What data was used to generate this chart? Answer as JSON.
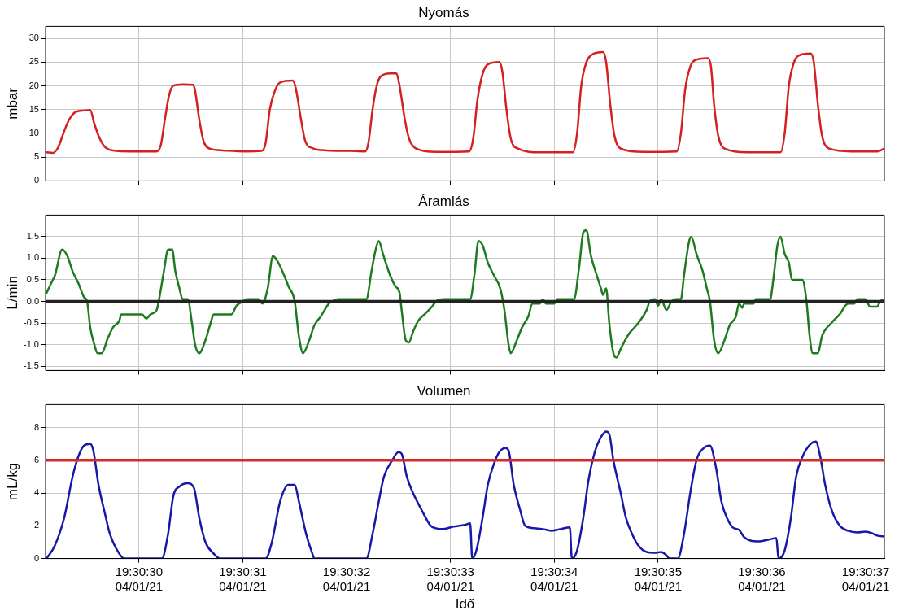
{
  "chart_data": [
    {
      "type": "line",
      "title": "Nyomás",
      "ylabel": "mbar",
      "xlim": [
        "--04-01T19:30:29.10",
        "--04-01T19:30:37.18"
      ],
      "ylim": [
        0,
        32.5
      ],
      "grid": true,
      "legend": false,
      "marker": "none",
      "line_style": "solid",
      "tick_labels": "y",
      "xticks": [
        "--04-01T19:30:30",
        "--04-01T19:30:31",
        "--04-01T19:30:32",
        "--04-01T19:30:33",
        "--04-01T19:30:34",
        "--04-01T19:30:35",
        "--04-01T19:30:36",
        "--04-01T19:30:37"
      ],
      "yticks": [
        0,
        5,
        10,
        15,
        20,
        25,
        30
      ],
      "series": [
        {
          "color": "#d42020",
          "x": [
            "--04-01T19:30:29.11",
            "--04-01T19:30:29.17",
            "--04-01T19:30:29.22",
            "--04-01T19:30:29.28",
            "--04-01T19:30:29.33",
            "--04-01T19:30:29.39",
            "--04-01T19:30:29.47",
            "--04-01T19:30:29.53",
            "--04-01T19:30:29.57",
            "--04-01T19:30:29.62",
            "--04-01T19:30:29.67",
            "--04-01T19:30:29.75",
            "--04-01T19:30:29.92",
            "--04-01T19:30:30.17",
            "--04-01T19:30:30.21",
            "--04-01T19:30:30.25",
            "--04-01T19:30:30.29",
            "--04-01T19:30:30.33",
            "--04-01T19:30:30.42",
            "--04-01T19:30:30.52",
            "--04-01T19:30:30.54",
            "--04-01T19:30:30.58",
            "--04-01T19:30:30.62",
            "--04-01T19:30:30.68",
            "--04-01T19:30:30.81",
            "--04-01T19:30:31.03",
            "--04-01T19:30:31.18",
            "--04-01T19:30:31.22",
            "--04-01T19:30:31.26",
            "--04-01T19:30:31.31",
            "--04-01T19:30:31.36",
            "--04-01T19:30:31.48",
            "--04-01T19:30:31.51",
            "--04-01T19:30:31.56",
            "--04-01T19:30:31.60",
            "--04-01T19:30:31.67",
            "--04-01T19:30:31.81",
            "--04-01T19:30:32.03",
            "--04-01T19:30:32.18",
            "--04-01T19:30:32.21",
            "--04-01T19:30:32.25",
            "--04-01T19:30:32.29",
            "--04-01T19:30:32.33",
            "--04-01T19:30:32.42",
            "--04-01T19:30:32.48",
            "--04-01T19:30:32.51",
            "--04-01T19:30:32.56",
            "--04-01T19:30:32.60",
            "--04-01T19:30:32.67",
            "--04-01T19:30:32.86",
            "--04-01T19:30:33.18",
            "--04-01T19:30:33.22",
            "--04-01T19:30:33.26",
            "--04-01T19:30:33.31",
            "--04-01T19:30:33.36",
            "--04-01T19:30:33.47",
            "--04-01T19:30:33.50",
            "--04-01T19:30:33.54",
            "--04-01T19:30:33.58",
            "--04-01T19:30:33.65",
            "--04-01T19:30:33.86",
            "--04-01T19:30:34.18",
            "--04-01T19:30:34.22",
            "--04-01T19:30:34.26",
            "--04-01T19:30:34.31",
            "--04-01T19:30:34.36",
            "--04-01T19:30:34.47",
            "--04-01T19:30:34.50",
            "--04-01T19:30:34.54",
            "--04-01T19:30:34.58",
            "--04-01T19:30:34.65",
            "--04-01T19:30:34.86",
            "--04-01T19:30:35.18",
            "--04-01T19:30:35.22",
            "--04-01T19:30:35.26",
            "--04-01T19:30:35.31",
            "--04-01T19:30:35.37",
            "--04-01T19:30:35.48",
            "--04-01T19:30:35.51",
            "--04-01T19:30:35.54",
            "--04-01T19:30:35.58",
            "--04-01T19:30:35.65",
            "--04-01T19:30:35.86",
            "--04-01T19:30:36.18",
            "--04-01T19:30:36.22",
            "--04-01T19:30:36.26",
            "--04-01T19:30:36.31",
            "--04-01T19:30:36.37",
            "--04-01T19:30:36.47",
            "--04-01T19:30:36.50",
            "--04-01T19:30:36.54",
            "--04-01T19:30:36.58",
            "--04-01T19:30:36.65",
            "--04-01T19:30:36.86",
            "--04-01T19:30:37.11",
            "--04-01T19:30:37.18"
          ],
          "values": [
            6.0,
            5.9,
            7.0,
            10.5,
            13.0,
            14.5,
            14.8,
            14.9,
            12.0,
            9.0,
            7.2,
            6.4,
            6.2,
            6.2,
            7.5,
            13.0,
            18.0,
            20.0,
            20.3,
            20.2,
            19.0,
            13.0,
            8.5,
            6.8,
            6.4,
            6.2,
            6.3,
            8.0,
            15.0,
            19.0,
            20.7,
            21.1,
            19.5,
            13.0,
            8.5,
            6.9,
            6.4,
            6.3,
            6.2,
            8.0,
            15.0,
            20.0,
            22.0,
            22.6,
            22.6,
            20.0,
            13.0,
            9.0,
            6.8,
            6.1,
            6.2,
            9.0,
            17.0,
            22.5,
            24.5,
            25.0,
            23.0,
            15.0,
            9.0,
            6.8,
            6.0,
            6.0,
            10.0,
            20.0,
            25.0,
            26.5,
            27.1,
            25.0,
            16.0,
            9.5,
            6.7,
            6.1,
            6.2,
            10.0,
            19.0,
            24.0,
            25.5,
            25.8,
            24.0,
            16.0,
            9.5,
            6.7,
            6.0,
            6.0,
            10.0,
            20.0,
            25.0,
            26.5,
            26.8,
            25.0,
            16.0,
            9.5,
            6.8,
            6.2,
            6.2,
            6.8
          ]
        }
      ]
    },
    {
      "type": "line",
      "title": "Áramlás",
      "ylabel": "L/min",
      "xlim": [
        "--04-01T19:30:29.10",
        "--04-01T19:30:37.18"
      ],
      "ylim": [
        -1.6,
        2.0
      ],
      "grid": true,
      "legend": false,
      "marker": "none",
      "line_style": "solid",
      "tick_labels": "y",
      "xticks": [
        "--04-01T19:30:30",
        "--04-01T19:30:31",
        "--04-01T19:30:32",
        "--04-01T19:30:33",
        "--04-01T19:30:34",
        "--04-01T19:30:35",
        "--04-01T19:30:36",
        "--04-01T19:30:37"
      ],
      "yticks": [
        {
          "value": -1.5,
          "label": "-1.5"
        },
        {
          "value": -1,
          "label": "-1.0"
        },
        {
          "value": -0.5,
          "label": "-0.5"
        },
        {
          "value": 0,
          "label": "0.0"
        },
        {
          "value": 0.5,
          "label": "0.5"
        },
        {
          "value": 1,
          "label": "1.0"
        },
        {
          "value": 1.5,
          "label": "1.5"
        }
      ],
      "ref_lines": [
        {
          "axis": "y",
          "value": 0,
          "color": "#222222"
        }
      ],
      "series": [
        {
          "color": "#1e7a1e",
          "x": [
            "--04-01T19:30:29.11",
            "--04-01T19:30:29.17",
            "--04-01T19:30:29.19",
            "--04-01T19:30:29.26",
            "--04-01T19:30:29.31",
            "--04-01T19:30:29.36",
            "--04-01T19:30:29.42",
            "--04-01T19:30:29.47",
            "--04-01T19:30:29.50",
            "--04-01T19:30:29.53",
            "--04-01T19:30:29.57",
            "--04-01T19:30:29.60",
            "--04-01T19:30:29.64",
            "--04-01T19:30:29.70",
            "--04-01T19:30:29.75",
            "--04-01T19:30:29.81",
            "--04-01T19:30:29.83",
            "--04-01T19:30:30.03",
            "--04-01T19:30:30.07",
            "--04-01T19:30:30.11",
            "--04-01T19:30:30.17",
            "--04-01T19:30:30.19",
            "--04-01T19:30:30.24",
            "--04-01T19:30:30.28",
            "--04-01T19:30:30.32",
            "--04-01T19:30:30.35",
            "--04-01T19:30:30.39",
            "--04-01T19:30:30.42",
            "--04-01T19:30:30.47",
            "--04-01T19:30:30.51",
            "--04-01T19:30:30.54",
            "--04-01T19:30:30.58",
            "--04-01T19:30:30.64",
            "--04-01T19:30:30.69",
            "--04-01T19:30:30.72",
            "--04-01T19:30:30.89",
            "--04-01T19:30:30.94",
            "--04-01T19:30:31.00",
            "--04-01T19:30:31.04",
            "--04-01T19:30:31.15",
            "--04-01T19:30:31.19",
            "--04-01T19:30:31.24",
            "--04-01T19:30:31.29",
            "--04-01T19:30:31.33",
            "--04-01T19:30:31.39",
            "--04-01T19:30:31.44",
            "--04-01T19:30:31.50",
            "--04-01T19:30:31.54",
            "--04-01T19:30:31.58",
            "--04-01T19:30:31.64",
            "--04-01T19:30:31.69",
            "--04-01T19:30:31.75",
            "--04-01T19:30:31.83",
            "--04-01T19:30:31.86",
            "--04-01T19:30:31.92",
            "--04-01T19:30:32.19",
            "--04-01T19:30:32.24",
            "--04-01T19:30:32.28",
            "--04-01T19:30:32.31",
            "--04-01T19:30:32.35",
            "--04-01T19:30:32.42",
            "--04-01T19:30:32.47",
            "--04-01T19:30:32.51",
            "--04-01T19:30:32.53",
            "--04-01T19:30:32.57",
            "--04-01T19:30:32.60",
            "--04-01T19:30:32.64",
            "--04-01T19:30:32.69",
            "--04-01T19:30:32.75",
            "--04-01T19:30:32.83",
            "--04-01T19:30:32.86",
            "--04-01T19:30:32.94",
            "--04-01T19:30:33.19",
            "--04-01T19:30:33.23",
            "--04-01T19:30:33.27",
            "--04-01T19:30:33.31",
            "--04-01T19:30:33.36",
            "--04-01T19:30:33.42",
            "--04-01T19:30:33.48",
            "--04-01T19:30:33.52",
            "--04-01T19:30:33.56",
            "--04-01T19:30:33.58",
            "--04-01T19:30:33.64",
            "--04-01T19:30:33.69",
            "--04-01T19:30:33.75",
            "--04-01T19:30:33.79",
            "--04-01T19:30:33.86",
            "--04-01T19:30:33.89",
            "--04-01T19:30:33.92",
            "--04-01T19:30:34.00",
            "--04-01T19:30:34.03",
            "--04-01T19:30:34.19",
            "--04-01T19:30:34.24",
            "--04-01T19:30:34.28",
            "--04-01T19:30:34.31",
            "--04-01T19:30:34.35",
            "--04-01T19:30:34.41",
            "--04-01T19:30:34.45",
            "--04-01T19:30:34.47",
            "--04-01T19:30:34.50",
            "--04-01T19:30:34.53",
            "--04-01T19:30:34.57",
            "--04-01T19:30:34.60",
            "--04-01T19:30:34.64",
            "--04-01T19:30:34.72",
            "--04-01T19:30:34.81",
            "--04-01T19:30:34.89",
            "--04-01T19:30:34.92",
            "--04-01T19:30:34.97",
            "--04-01T19:30:35.00",
            "--04-01T19:30:35.03",
            "--04-01T19:30:35.08",
            "--04-01T19:30:35.13",
            "--04-01T19:30:35.17",
            "--04-01T19:30:35.22",
            "--04-01T19:30:35.25",
            "--04-01T19:30:35.30",
            "--04-01T19:30:35.32",
            "--04-01T19:30:35.37",
            "--04-01T19:30:35.43",
            "--04-01T19:30:35.47",
            "--04-01T19:30:35.50",
            "--04-01T19:30:35.54",
            "--04-01T19:30:35.58",
            "--04-01T19:30:35.64",
            "--04-01T19:30:35.69",
            "--04-01T19:30:35.75",
            "--04-01T19:30:35.78",
            "--04-01T19:30:35.81",
            "--04-01T19:30:35.83",
            "--04-01T19:30:35.92",
            "--04-01T19:30:35.94",
            "--04-01T19:30:36.08",
            "--04-01T19:30:36.11",
            "--04-01T19:30:36.15",
            "--04-01T19:30:36.18",
            "--04-01T19:30:36.22",
            "--04-01T19:30:36.26",
            "--04-01T19:30:36.29",
            "--04-01T19:30:36.39",
            "--04-01T19:30:36.43",
            "--04-01T19:30:36.46",
            "--04-01T19:30:36.49",
            "--04-01T19:30:36.54",
            "--04-01T19:30:36.58",
            "--04-01T19:30:36.67",
            "--04-01T19:30:36.75",
            "--04-01T19:30:36.83",
            "--04-01T19:30:36.89",
            "--04-01T19:30:36.92",
            "--04-01T19:30:37.00",
            "--04-01T19:30:37.04",
            "--04-01T19:30:37.11",
            "--04-01T19:30:37.14",
            "--04-01T19:30:37.18"
          ],
          "values": [
            0.2,
            0.5,
            0.6,
            1.2,
            1.05,
            0.7,
            0.4,
            0.1,
            0,
            -0.6,
            -1.0,
            -1.2,
            -1.2,
            -0.85,
            -0.6,
            -0.45,
            -0.3,
            -0.3,
            -0.4,
            -0.3,
            -0.2,
            0,
            0.7,
            1.2,
            1.2,
            0.7,
            0.3,
            0.05,
            0.05,
            -0.5,
            -1.0,
            -1.2,
            -0.9,
            -0.5,
            -0.3,
            -0.3,
            -0.1,
            0,
            0.05,
            0.05,
            -0.05,
            0.3,
            1.05,
            0.95,
            0.65,
            0.35,
            0,
            -0.8,
            -1.2,
            -0.9,
            -0.55,
            -0.35,
            -0.05,
            0,
            0.05,
            0.05,
            0.7,
            1.2,
            1.4,
            1.1,
            0.6,
            0.35,
            0.2,
            -0.2,
            -0.9,
            -0.95,
            -0.7,
            -0.45,
            -0.3,
            -0.1,
            0,
            0.05,
            0.05,
            0.6,
            1.4,
            1.3,
            0.9,
            0.6,
            0.3,
            -0.2,
            -1.0,
            -1.2,
            -0.9,
            -0.6,
            -0.35,
            -0.05,
            -0.05,
            0.05,
            -0.05,
            -0.05,
            0.05,
            0.05,
            0.8,
            1.6,
            1.65,
            1.1,
            0.6,
            0.3,
            0.15,
            0.3,
            -0.5,
            -1.2,
            -1.3,
            -1.1,
            -0.75,
            -0.5,
            -0.2,
            0,
            0.05,
            -0.1,
            0.05,
            -0.2,
            0,
            0.05,
            0.05,
            0.6,
            1.4,
            1.5,
            1.1,
            0.7,
            0.3,
            0,
            -0.9,
            -1.2,
            -0.9,
            -0.55,
            -0.35,
            -0.05,
            -0.15,
            -0.05,
            -0.05,
            0.05,
            0.05,
            0.5,
            1.3,
            1.5,
            1.1,
            0.9,
            0.5,
            0.5,
            0,
            -0.8,
            -1.2,
            -1.2,
            -0.8,
            -0.5,
            -0.3,
            -0.05,
            -0.05,
            0.05,
            0.05,
            -0.12,
            -0.12,
            0,
            0.05
          ]
        }
      ]
    },
    {
      "type": "line",
      "title": "Volumen",
      "xlabel": "Idő",
      "ylabel": "mL/kg",
      "xlim": [
        "--04-01T19:30:29.10",
        "--04-01T19:30:37.18"
      ],
      "ylim": [
        0,
        9.4
      ],
      "grid": true,
      "legend": false,
      "marker": "none",
      "line_style": "solid",
      "xticks": [
        {
          "value": "--04-01T19:30:30",
          "label": "19:30:30\n04/01/21"
        },
        {
          "value": "--04-01T19:30:31",
          "label": "19:30:31\n04/01/21"
        },
        {
          "value": "--04-01T19:30:32",
          "label": "19:30:32\n04/01/21"
        },
        {
          "value": "--04-01T19:30:33",
          "label": "19:30:33\n04/01/21"
        },
        {
          "value": "--04-01T19:30:34",
          "label": "19:30:34\n04/01/21"
        },
        {
          "value": "--04-01T19:30:35",
          "label": "19:30:35\n04/01/21"
        },
        {
          "value": "--04-01T19:30:36",
          "label": "19:30:36\n04/01/21"
        },
        {
          "value": "--04-01T19:30:37",
          "label": "19:30:37\n04/01/21"
        }
      ],
      "yticks": [
        0,
        2,
        4,
        6,
        8
      ],
      "ref_lines": [
        {
          "axis": "y",
          "value": 6,
          "color": "#d42a2a"
        }
      ],
      "series": [
        {
          "color": "#1818a8",
          "x": [
            "--04-01T19:30:29.11",
            "--04-01T19:30:29.19",
            "--04-01T19:30:29.28",
            "--04-01T19:30:29.36",
            "--04-01T19:30:29.42",
            "--04-01T19:30:29.47",
            "--04-01T19:30:29.53",
            "--04-01T19:30:29.56",
            "--04-01T19:30:29.61",
            "--04-01T19:30:29.67",
            "--04-01T19:30:29.72",
            "--04-01T19:30:29.81",
            "--04-01T19:30:29.86",
            "--04-01T19:30:30.22",
            "--04-01T19:30:30.28",
            "--04-01T19:30:30.33",
            "--04-01T19:30:30.39",
            "--04-01T19:30:30.47",
            "--04-01T19:30:30.53",
            "--04-01T19:30:30.58",
            "--04-01T19:30:30.64",
            "--04-01T19:30:30.72",
            "--04-01T19:30:30.78",
            "--04-01T19:30:31.22",
            "--04-01T19:30:31.28",
            "--04-01T19:30:31.36",
            "--04-01T19:30:31.44",
            "--04-01T19:30:31.50",
            "--04-01T19:30:31.54",
            "--04-01T19:30:31.61",
            "--04-01T19:30:31.67",
            "--04-01T19:30:31.69",
            "--04-01T19:30:32.19",
            "--04-01T19:30:32.25",
            "--04-01T19:30:32.31",
            "--04-01T19:30:32.36",
            "--04-01T19:30:32.44",
            "--04-01T19:30:32.50",
            "--04-01T19:30:32.53",
            "--04-01T19:30:32.58",
            "--04-01T19:30:32.64",
            "--04-01T19:30:32.72",
            "--04-01T19:30:32.81",
            "--04-01T19:30:32.86",
            "--04-01T19:30:32.92",
            "--04-01T19:30:33.03",
            "--04-01T19:30:33.14",
            "--04-01T19:30:33.19",
            "--04-01T19:30:33.21",
            "--04-01T19:30:33.25",
            "--04-01T19:30:33.31",
            "--04-01T19:30:33.36",
            "--04-01T19:30:33.42",
            "--04-01T19:30:33.47",
            "--04-01T19:30:33.53",
            "--04-01T19:30:33.56",
            "--04-01T19:30:33.61",
            "--04-01T19:30:33.67",
            "--04-01T19:30:33.72",
            "--04-01T19:30:33.81",
            "--04-01T19:30:33.89",
            "--04-01T19:30:33.97",
            "--04-01T19:30:34.06",
            "--04-01T19:30:34.15",
            "--04-01T19:30:34.17",
            "--04-01T19:30:34.22",
            "--04-01T19:30:34.28",
            "--04-01T19:30:34.33",
            "--04-01T19:30:34.39",
            "--04-01T19:30:34.44",
            "--04-01T19:30:34.50",
            "--04-01T19:30:34.53",
            "--04-01T19:30:34.57",
            "--04-01T19:30:34.64",
            "--04-01T19:30:34.69",
            "--04-01T19:30:34.75",
            "--04-01T19:30:34.81",
            "--04-01T19:30:34.89",
            "--04-01T19:30:34.97",
            "--04-01T19:30:35.03",
            "--04-01T19:30:35.08",
            "--04-01T19:30:35.11",
            "--04-01T19:30:35.19",
            "--04-01T19:30:35.25",
            "--04-01T19:30:35.31",
            "--04-01T19:30:35.37",
            "--04-01T19:30:35.45",
            "--04-01T19:30:35.50",
            "--04-01T19:30:35.56",
            "--04-01T19:30:35.61",
            "--04-01T19:30:35.67",
            "--04-01T19:30:35.72",
            "--04-01T19:30:35.78",
            "--04-01T19:30:35.83",
            "--04-01T19:30:35.89",
            "--04-01T19:30:35.97",
            "--04-01T19:30:36.06",
            "--04-01T19:30:36.14",
            "--04-01T19:30:36.16",
            "--04-01T19:30:36.22",
            "--04-01T19:30:36.28",
            "--04-01T19:30:36.33",
            "--04-01T19:30:36.39",
            "--04-01T19:30:36.47",
            "--04-01T19:30:36.52",
            "--04-01T19:30:36.56",
            "--04-01T19:30:36.61",
            "--04-01T19:30:36.67",
            "--04-01T19:30:36.75",
            "--04-01T19:30:36.83",
            "--04-01T19:30:36.92",
            "--04-01T19:30:37.00",
            "--04-01T19:30:37.06",
            "--04-01T19:30:37.11",
            "--04-01T19:30:37.18"
          ],
          "values": [
            0,
            0.8,
            2.5,
            5.0,
            6.3,
            6.9,
            7.0,
            6.6,
            4.5,
            2.8,
            1.5,
            0.3,
            0,
            0,
            1.5,
            3.8,
            4.4,
            4.6,
            4.3,
            2.5,
            1.0,
            0.3,
            0,
            0,
            1.0,
            3.5,
            4.5,
            4.5,
            3.5,
            1.5,
            0.3,
            0,
            0,
            1.5,
            3.5,
            5.0,
            6.0,
            6.5,
            6.4,
            5.0,
            4.0,
            3.0,
            2.0,
            1.85,
            1.8,
            1.95,
            2.05,
            2.15,
            0,
            0.5,
            2.5,
            4.5,
            5.8,
            6.5,
            6.75,
            6.6,
            4.5,
            3.0,
            2.0,
            1.85,
            1.8,
            1.7,
            1.8,
            1.9,
            0,
            0.5,
            2.5,
            4.8,
            6.5,
            7.3,
            7.75,
            7.6,
            6.0,
            4.0,
            2.5,
            1.5,
            0.8,
            0.4,
            0.35,
            0.4,
            0.2,
            0,
            0,
            1.5,
            4.0,
            6.0,
            6.8,
            6.9,
            5.5,
            3.5,
            2.4,
            1.9,
            1.75,
            1.3,
            1.1,
            1.05,
            1.15,
            1.25,
            0,
            0.5,
            2.5,
            5.0,
            6.2,
            7.0,
            7.15,
            6.3,
            4.5,
            3.0,
            2.0,
            1.7,
            1.6,
            1.65,
            1.55,
            1.4,
            1.35
          ]
        }
      ]
    }
  ]
}
